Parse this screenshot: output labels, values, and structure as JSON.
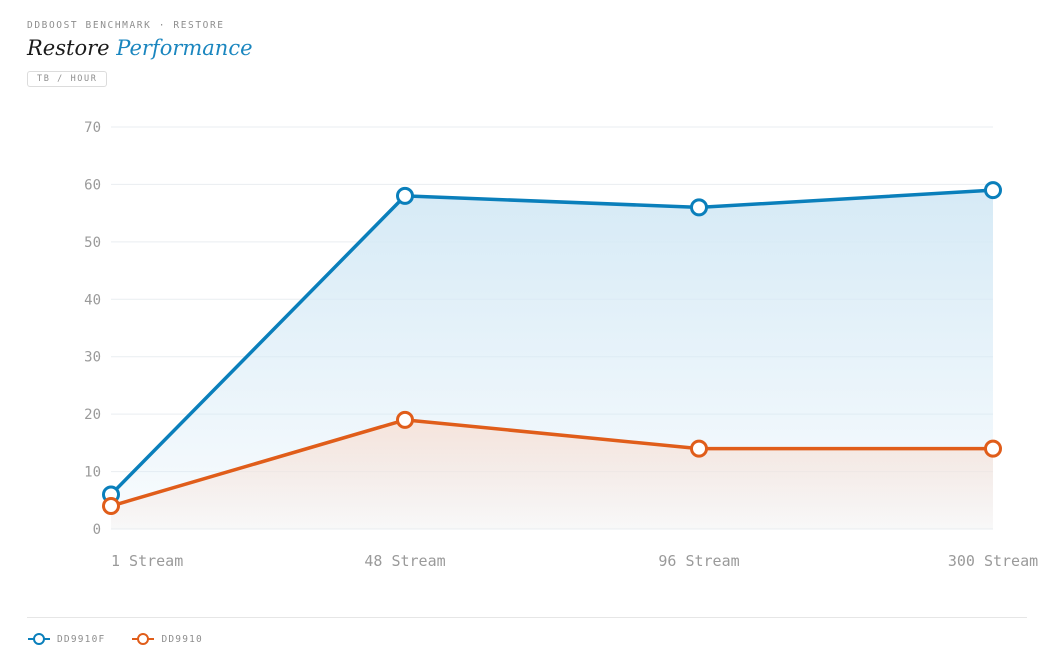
{
  "header": {
    "eyebrow": "DDBOOST BENCHMARK · RESTORE",
    "title_main": "Restore",
    "title_accent": "Performance",
    "unit_badge": "TB / HOUR"
  },
  "chart_data": {
    "type": "line",
    "categories": [
      "1 Stream",
      "48 Stream",
      "96 Stream",
      "300 Stream"
    ],
    "series": [
      {
        "name": "DD9910F",
        "values": [
          6,
          58,
          56,
          59
        ],
        "color": "#0a7fbb",
        "area_color": "#d6eaf6"
      },
      {
        "name": "DD9910",
        "values": [
          4,
          19,
          14,
          14
        ],
        "color": "#e05d1a",
        "area_color": "#f6e4dc"
      }
    ],
    "ylim": [
      0,
      70
    ],
    "yticks": [
      0,
      10,
      20,
      30,
      40,
      50,
      60,
      70
    ],
    "grid": true,
    "legend_position": "bottom-left"
  }
}
